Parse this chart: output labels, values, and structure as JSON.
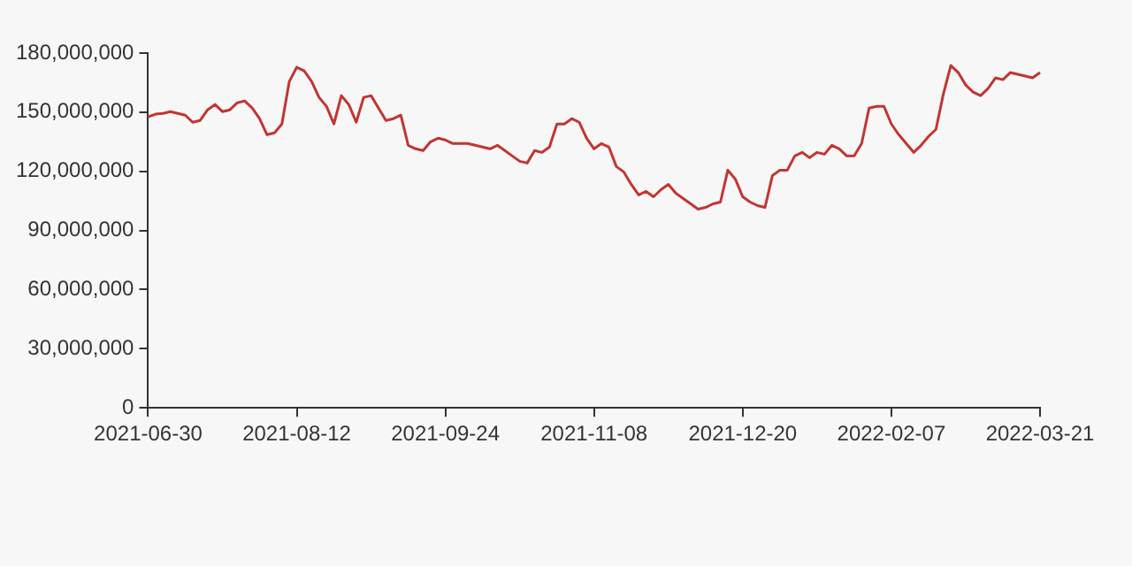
{
  "chart_data": {
    "type": "line",
    "categories": [
      "2021-06-30",
      null,
      null,
      null,
      null,
      null,
      null,
      null,
      null,
      null,
      null,
      null,
      null,
      null,
      null,
      null,
      null,
      null,
      null,
      null,
      "2021-08-12",
      null,
      null,
      null,
      null,
      null,
      null,
      null,
      null,
      null,
      null,
      null,
      null,
      null,
      null,
      null,
      null,
      null,
      null,
      null,
      "2021-09-24",
      null,
      null,
      null,
      null,
      null,
      null,
      null,
      null,
      null,
      null,
      null,
      null,
      null,
      null,
      null,
      null,
      null,
      null,
      null,
      "2021-11-08",
      null,
      null,
      null,
      null,
      null,
      null,
      null,
      null,
      null,
      null,
      null,
      null,
      null,
      null,
      null,
      null,
      null,
      null,
      null,
      "2021-12-20",
      null,
      null,
      null,
      null,
      null,
      null,
      null,
      null,
      null,
      null,
      null,
      null,
      null,
      null,
      null,
      null,
      null,
      null,
      null,
      "2022-02-07",
      null,
      null,
      null,
      null,
      null,
      null,
      null,
      null,
      null,
      null,
      null,
      null,
      null,
      null,
      null,
      null,
      null,
      null,
      null,
      "2022-03-21"
    ],
    "series": [
      {
        "color": "#c23531",
        "values": [
          147600000,
          149000000,
          149400000,
          150300000,
          149400000,
          148500000,
          144900000,
          145800000,
          151200000,
          153900000,
          150300000,
          151200000,
          154800000,
          155700000,
          152100000,
          146700000,
          138600000,
          139500000,
          144000000,
          165600000,
          172800000,
          171000000,
          165600000,
          157500000,
          153000000,
          144000000,
          158400000,
          153900000,
          144900000,
          157500000,
          158400000,
          152100000,
          145800000,
          146700000,
          148500000,
          133200000,
          131400000,
          130500000,
          135000000,
          136800000,
          135900000,
          134100000,
          134100000,
          134100000,
          133200000,
          132300000,
          131400000,
          133200000,
          130500000,
          127800000,
          125100000,
          124200000,
          130500000,
          129600000,
          132300000,
          144000000,
          144000000,
          146700000,
          144900000,
          136800000,
          131400000,
          134100000,
          132300000,
          122400000,
          119700000,
          113400000,
          108000000,
          109800000,
          107100000,
          110700000,
          113400000,
          108900000,
          106200000,
          103500000,
          100800000,
          101700000,
          103500000,
          104400000,
          120600000,
          116100000,
          107100000,
          104400000,
          102600000,
          101700000,
          117900000,
          120600000,
          120600000,
          127800000,
          129600000,
          126900000,
          129600000,
          128700000,
          133200000,
          131400000,
          127800000,
          127800000,
          134100000,
          152100000,
          153000000,
          153000000,
          144000000,
          138600000,
          134100000,
          129600000,
          133200000,
          137700000,
          141300000,
          159300000,
          173700000,
          170100000,
          163800000,
          160200000,
          158400000,
          162000000,
          167400000,
          166500000,
          170100000,
          169200000,
          168300000,
          167400000,
          170100000
        ]
      }
    ],
    "ylim": [
      0,
      180000000
    ],
    "yticks": [
      0,
      {
        "value": 30000000,
        "label": "30,000,000"
      },
      {
        "value": 60000000,
        "label": "60,000,000"
      },
      {
        "value": 90000000,
        "label": "90,000,000"
      },
      {
        "value": 120000000,
        "label": "120,000,000"
      },
      {
        "value": 150000000,
        "label": "150,000,000"
      },
      {
        "value": 180000000,
        "label": "180,000,000"
      }
    ],
    "grid": false,
    "legend": false,
    "marker": "none",
    "line_style": "solid"
  }
}
